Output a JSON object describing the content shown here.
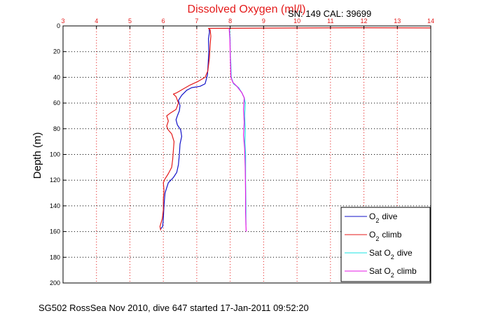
{
  "chart_data": {
    "type": "line",
    "title": "Dissolved Oxygen (ml/l)",
    "title_color": "#e41a1a",
    "header_right": "SN: 149  CAL: 39699",
    "footer": "SG502 RossSea Nov 2010, dive 647 started 17-Jan-2011 09:52:20",
    "ylabel": "Depth (m)",
    "xlim": [
      3,
      14
    ],
    "ylim": [
      0,
      200
    ],
    "y_reversed": true,
    "x_axis_position": "top",
    "x_tick_color": "#e41a1a",
    "x_ticks": [
      "3",
      "4",
      "5",
      "6",
      "7",
      "8",
      "9",
      "10",
      "11",
      "12",
      "13",
      "14"
    ],
    "y_ticks": [
      "0",
      "20",
      "40",
      "60",
      "80",
      "100",
      "120",
      "140",
      "160",
      "180",
      "200"
    ],
    "grid": true,
    "grid_color": "#e41a1a",
    "legend_position": "bottom-right",
    "legend": {
      "o2_dive": "dive",
      "o2_climb": "climb",
      "sat_dive": "dive",
      "sat_climb": "climb",
      "prefix_o2": "O",
      "prefix_sat": "Sat O",
      "subscript": "2"
    },
    "series": [
      {
        "name": "O2 dive",
        "color": "#1212c8",
        "points": [
          [
            7.37,
            2
          ],
          [
            7.38,
            5
          ],
          [
            7.35,
            10
          ],
          [
            7.36,
            20
          ],
          [
            7.34,
            30
          ],
          [
            7.32,
            38
          ],
          [
            7.28,
            42
          ],
          [
            7.25,
            45
          ],
          [
            7.1,
            47
          ],
          [
            6.85,
            48
          ],
          [
            6.7,
            50
          ],
          [
            6.55,
            54
          ],
          [
            6.45,
            58
          ],
          [
            6.5,
            62
          ],
          [
            6.48,
            66
          ],
          [
            6.42,
            70
          ],
          [
            6.38,
            73
          ],
          [
            6.42,
            77
          ],
          [
            6.52,
            81
          ],
          [
            6.55,
            86
          ],
          [
            6.5,
            92
          ],
          [
            6.48,
            100
          ],
          [
            6.45,
            108
          ],
          [
            6.4,
            114
          ],
          [
            6.3,
            118
          ],
          [
            6.15,
            122
          ],
          [
            6.05,
            130
          ],
          [
            6.02,
            140
          ],
          [
            6.0,
            150
          ],
          [
            5.98,
            156
          ],
          [
            5.92,
            158
          ]
        ]
      },
      {
        "name": "O2 climb",
        "color": "#e41a1a",
        "points": [
          [
            14.0,
            1.6
          ],
          [
            11.7,
            1.4
          ],
          [
            7.35,
            1.9
          ],
          [
            7.4,
            3
          ],
          [
            7.42,
            8
          ],
          [
            7.4,
            15
          ],
          [
            7.38,
            25
          ],
          [
            7.33,
            35
          ],
          [
            7.25,
            40
          ],
          [
            7.05,
            43
          ],
          [
            6.8,
            46
          ],
          [
            6.6,
            49
          ],
          [
            6.4,
            52
          ],
          [
            6.3,
            53
          ],
          [
            6.38,
            55
          ],
          [
            6.45,
            60
          ],
          [
            6.38,
            65
          ],
          [
            6.2,
            68
          ],
          [
            6.1,
            70
          ],
          [
            6.15,
            74
          ],
          [
            6.1,
            78
          ],
          [
            6.15,
            81
          ],
          [
            6.25,
            84
          ],
          [
            6.32,
            90
          ],
          [
            6.3,
            97
          ],
          [
            6.28,
            104
          ],
          [
            6.25,
            110
          ],
          [
            6.15,
            115
          ],
          [
            6.05,
            119
          ],
          [
            6.0,
            122
          ],
          [
            6.02,
            128
          ],
          [
            6.0,
            135
          ],
          [
            6.0,
            143
          ],
          [
            5.97,
            150
          ],
          [
            5.9,
            156
          ],
          [
            5.92,
            159
          ]
        ]
      },
      {
        "name": "Sat O2 dive",
        "color": "#19e3e3",
        "points": [
          [
            7.98,
            2
          ],
          [
            8.0,
            10
          ],
          [
            8.0,
            20
          ],
          [
            8.02,
            30
          ],
          [
            8.03,
            40
          ],
          [
            8.1,
            45
          ],
          [
            8.25,
            48
          ],
          [
            8.35,
            52
          ],
          [
            8.42,
            56
          ],
          [
            8.45,
            60
          ],
          [
            8.43,
            70
          ],
          [
            8.45,
            80
          ],
          [
            8.44,
            90
          ],
          [
            8.46,
            100
          ],
          [
            8.46,
            120
          ],
          [
            8.47,
            140
          ],
          [
            8.47,
            155
          ]
        ]
      },
      {
        "name": "Sat O2 climb",
        "color": "#e61ae6",
        "points": [
          [
            7.97,
            2
          ],
          [
            7.99,
            10
          ],
          [
            8.0,
            20
          ],
          [
            8.01,
            30
          ],
          [
            8.02,
            40
          ],
          [
            8.08,
            44
          ],
          [
            8.2,
            47
          ],
          [
            8.35,
            52
          ],
          [
            8.42,
            56
          ],
          [
            8.4,
            65
          ],
          [
            8.42,
            75
          ],
          [
            8.4,
            85
          ],
          [
            8.43,
            95
          ],
          [
            8.45,
            110
          ],
          [
            8.46,
            130
          ],
          [
            8.46,
            145
          ],
          [
            8.47,
            155
          ],
          [
            8.48,
            160
          ]
        ]
      }
    ]
  }
}
